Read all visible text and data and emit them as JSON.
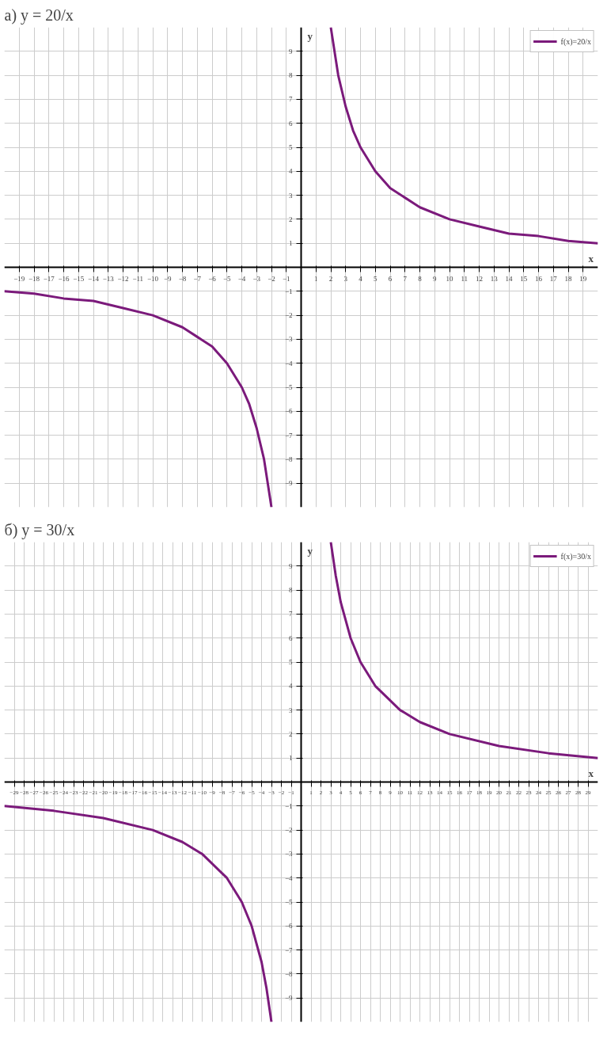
{
  "chart_data": [
    {
      "type": "line",
      "title": "а) y = 20/x",
      "xlabel": "x",
      "ylabel": "y",
      "legend": "top right",
      "grid": true,
      "xlim": [
        -20,
        20
      ],
      "ylim": [
        -10,
        10
      ],
      "xticks": [
        -19,
        -18,
        -17,
        -16,
        -15,
        -14,
        -13,
        -12,
        -11,
        -10,
        -9,
        -8,
        -7,
        -6,
        -5,
        -4,
        -3,
        -2,
        -1,
        1,
        2,
        3,
        4,
        5,
        6,
        7,
        8,
        9,
        10,
        11,
        12,
        13,
        14,
        15,
        16,
        17,
        18,
        19
      ],
      "yticks": [
        -9,
        -8,
        -7,
        -6,
        -5,
        -4,
        -3,
        -2,
        -1,
        1,
        2,
        3,
        4,
        5,
        6,
        7,
        8,
        9
      ],
      "x": [
        -20,
        -18,
        -16,
        -14,
        -12,
        -10,
        -8,
        -7,
        -6,
        -5,
        -4,
        -3.5,
        -3,
        -2.5,
        -2,
        0,
        2,
        2.5,
        3,
        3.5,
        4,
        5,
        6,
        7,
        8,
        10,
        12,
        14,
        16,
        18,
        20
      ],
      "series": [
        {
          "name": "f(x)=20/x",
          "color": "#7b1a7b",
          "values": [
            -1,
            -1.1,
            -1.3,
            -1.4,
            -1.7,
            -2,
            -2.5,
            -2.9,
            -3.3,
            -4,
            -5,
            -5.7,
            -6.7,
            -8,
            -10,
            null,
            10,
            8,
            6.7,
            5.7,
            5,
            4,
            3.3,
            2.9,
            2.5,
            2,
            1.7,
            1.4,
            1.3,
            1.1,
            1
          ]
        }
      ]
    },
    {
      "type": "line",
      "title": "б) y = 30/x",
      "xlabel": "x",
      "ylabel": "y",
      "legend": "top right",
      "grid": true,
      "xlim": [
        -30,
        30
      ],
      "ylim": [
        -10,
        10
      ],
      "xticks": [
        -29,
        -28,
        -27,
        -26,
        -25,
        -24,
        -23,
        -22,
        -21,
        -20,
        -19,
        -18,
        -17,
        -16,
        -15,
        -14,
        -13,
        -12,
        -11,
        -10,
        -9,
        -8,
        -7,
        -6,
        -5,
        -4,
        -3,
        -2,
        -1,
        1,
        2,
        3,
        4,
        5,
        6,
        7,
        8,
        9,
        10,
        11,
        12,
        13,
        14,
        15,
        16,
        17,
        18,
        19,
        20,
        21,
        22,
        23,
        24,
        25,
        26,
        27,
        28,
        29
      ],
      "yticks": [
        -9,
        -8,
        -7,
        -6,
        -5,
        -4,
        -3,
        -2,
        -1,
        1,
        2,
        3,
        4,
        5,
        6,
        7,
        8,
        9
      ],
      "x": [
        -30,
        -25,
        -20,
        -15,
        -12,
        -10,
        -8,
        -7.5,
        -6,
        -5,
        -4,
        -3.5,
        -3,
        0,
        3,
        3.5,
        4,
        5,
        6,
        7.5,
        8,
        10,
        12,
        15,
        20,
        25,
        30
      ],
      "series": [
        {
          "name": "f(x)=30/x",
          "color": "#7b1a7b",
          "values": [
            -1,
            -1.2,
            -1.5,
            -2,
            -2.5,
            -3,
            -3.8,
            -4,
            -5,
            -6,
            -7.5,
            -8.6,
            -10,
            null,
            10,
            8.6,
            7.5,
            6,
            5,
            4,
            3.8,
            3,
            2.5,
            2,
            1.5,
            1.2,
            1
          ]
        }
      ]
    }
  ]
}
